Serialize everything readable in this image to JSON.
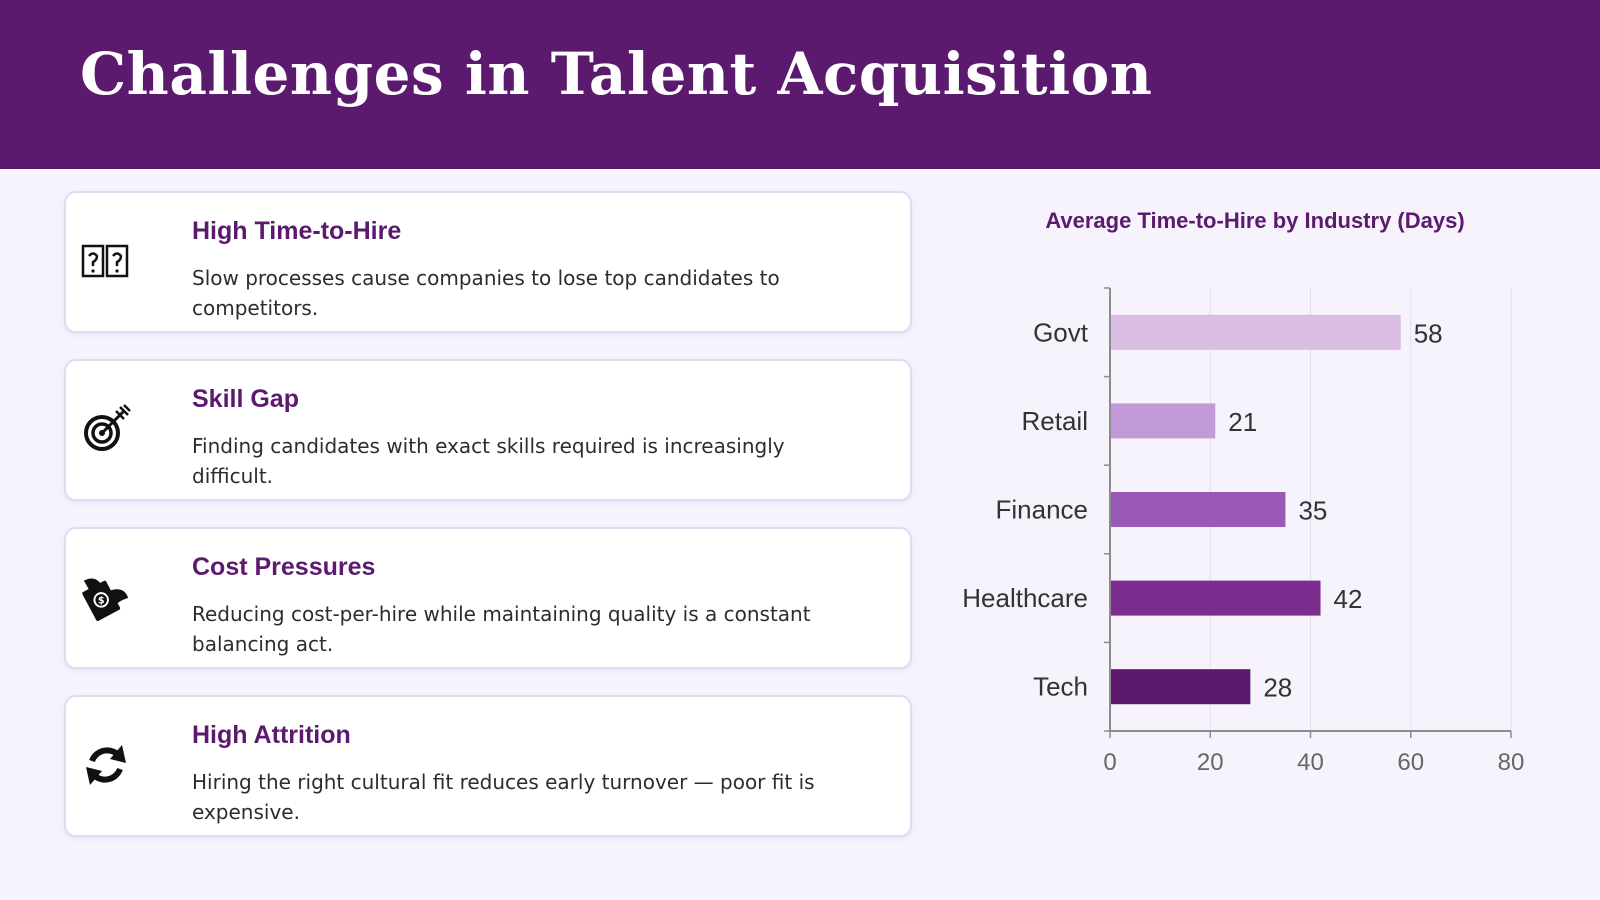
{
  "header": {
    "title": "Challenges in Talent Acquisition"
  },
  "cards": [
    {
      "icon": "timer-icon",
      "title": "High Time-to-Hire",
      "description": "Slow processes cause companies to lose top candidates to competitors."
    },
    {
      "icon": "target-icon",
      "title": "Skill Gap",
      "description": "Finding candidates with exact skills required is increasingly difficult."
    },
    {
      "icon": "flying-money-icon",
      "title": "Cost Pressures",
      "description": "Reducing cost-per-hire while maintaining quality is a constant balancing act."
    },
    {
      "icon": "refresh-icon",
      "title": "High Attrition",
      "description": "Hiring the right cultural fit reduces early turnover — poor fit is expensive."
    }
  ],
  "chart_data": {
    "type": "bar",
    "orientation": "horizontal",
    "title": "Average Time-to-Hire by Industry (Days)",
    "categories": [
      "Govt",
      "Retail",
      "Finance",
      "Healthcare",
      "Tech"
    ],
    "values": [
      58,
      21,
      35,
      42,
      28
    ],
    "colors": [
      "#d9bde3",
      "#c39ad8",
      "#9b59b6",
      "#7b2d8e",
      "#5b1a6e"
    ],
    "xlim": [
      0,
      80
    ],
    "xticks": [
      0,
      20,
      40,
      60,
      80
    ],
    "xlabel": "",
    "ylabel": "",
    "grid": true,
    "data_labels": true
  },
  "colors": {
    "accent": "#5b1a6e",
    "background": "#f6f3fd"
  }
}
